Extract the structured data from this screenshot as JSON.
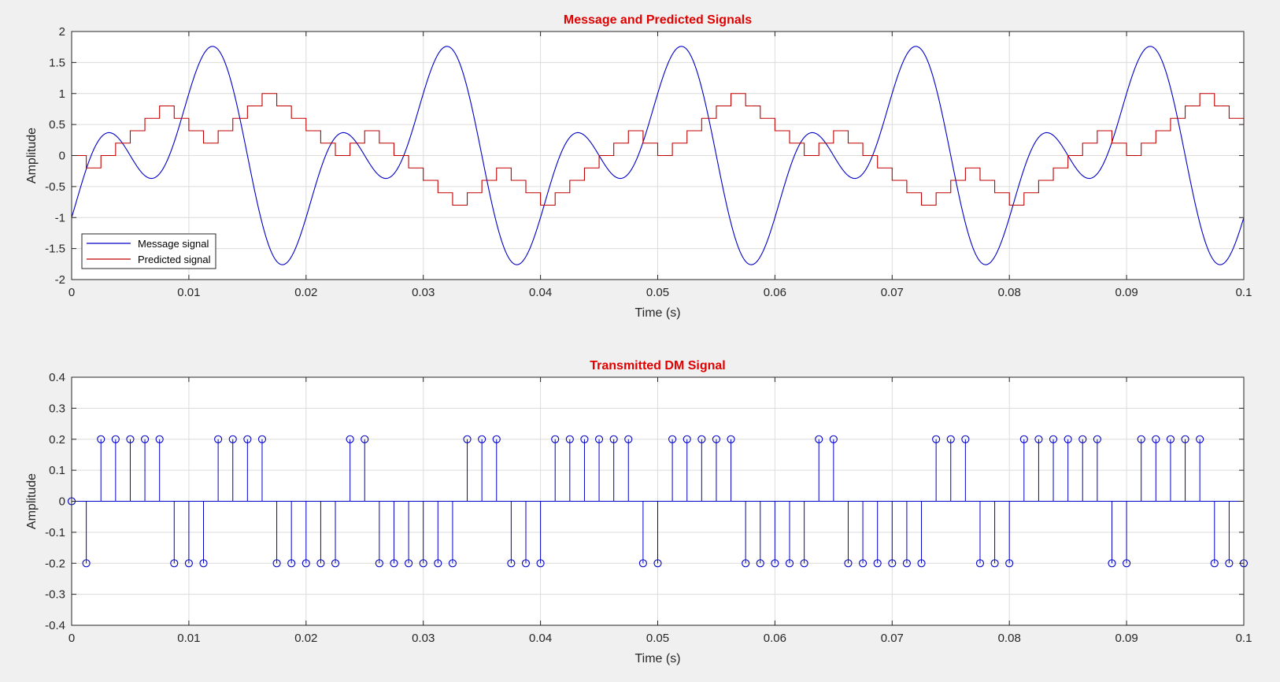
{
  "colors": {
    "message": "#0000c8",
    "predicted": "#c00000",
    "stem": "#0000c8",
    "title": "#e00000",
    "grid": "#dcdcdc",
    "axes": "#262626"
  },
  "chart_data": [
    {
      "type": "line",
      "title": "Message and Predicted Signals",
      "xlabel": "Time (s)",
      "ylabel": "Amplitude",
      "xlim": [
        0,
        0.1
      ],
      "ylim": [
        -2,
        2
      ],
      "xticks": [
        0,
        0.01,
        0.02,
        0.03,
        0.04,
        0.05,
        0.06,
        0.07,
        0.08,
        0.09,
        0.1
      ],
      "xtick_labels": [
        "0",
        "0.01",
        "0.02",
        "0.03",
        "0.04",
        "0.05",
        "0.06",
        "0.07",
        "0.08",
        "0.09",
        "0.1"
      ],
      "yticks": [
        -2,
        -1.5,
        -1,
        -0.5,
        0,
        0.5,
        1,
        1.5,
        2
      ],
      "ytick_labels": [
        "-2",
        "-1.5",
        "-1",
        "-0.5",
        "0",
        "0.5",
        "1",
        "1.5",
        "2"
      ],
      "grid": true,
      "legend": {
        "position": "bottom-left",
        "entries": [
          "Message signal",
          "Predicted signal"
        ]
      },
      "sample_period": 0.00125,
      "series": [
        {
          "name": "Message signal",
          "kind": "sine-sum",
          "components": [
            {
              "amplitude": 1,
              "frequency_hz": 100,
              "phase": "sin"
            },
            {
              "amplitude": -1,
              "frequency_hz": 50,
              "phase": "cos"
            }
          ]
        },
        {
          "name": "Predicted signal",
          "kind": "staircase",
          "x": [
            0,
            0.00125,
            0.0025,
            0.00375,
            0.005,
            0.00625,
            0.0075,
            0.00875,
            0.01,
            0.01125,
            0.0125,
            0.01375,
            0.015,
            0.01625,
            0.0175,
            0.01875,
            0.02,
            0.02125,
            0.0225,
            0.02375,
            0.025,
            0.02625,
            0.0275,
            0.02875,
            0.03,
            0.03125,
            0.0325,
            0.03375,
            0.035,
            0.03625,
            0.0375,
            0.03875,
            0.04,
            0.04125,
            0.0425,
            0.04375,
            0.045,
            0.04625,
            0.0475,
            0.04875,
            0.05,
            0.05125,
            0.0525,
            0.05375,
            0.055,
            0.05625,
            0.0575,
            0.05875,
            0.06,
            0.06125,
            0.0625,
            0.06375,
            0.065,
            0.06625,
            0.0675,
            0.06875,
            0.07,
            0.07125,
            0.0725,
            0.07375,
            0.075,
            0.07625,
            0.0775,
            0.07875,
            0.08,
            0.08125,
            0.0825,
            0.08375,
            0.085,
            0.08625,
            0.0875,
            0.08875,
            0.09,
            0.09125,
            0.0925,
            0.09375,
            0.095,
            0.09625,
            0.0975,
            0.09875,
            0.1
          ],
          "values": [
            0,
            -0.2,
            0,
            0.2,
            0.4,
            0.6,
            0.8,
            0.6,
            0.4,
            0.2,
            0.4,
            0.6,
            0.8,
            1,
            0.8,
            0.6,
            0.4,
            0.2,
            0,
            0.2,
            0.4,
            0.2,
            0,
            -0.2,
            -0.4,
            -0.6,
            -0.8,
            -0.6,
            -0.4,
            -0.2,
            -0.4,
            -0.6,
            -0.8,
            -0.6,
            -0.4,
            -0.2,
            0,
            0.2,
            0.4,
            0.2,
            0,
            0.2,
            0.4,
            0.6,
            0.8,
            1,
            0.8,
            0.6,
            0.4,
            0.2,
            0,
            0.2,
            0.4,
            0.2,
            0,
            -0.2,
            -0.4,
            -0.6,
            -0.8,
            -0.6,
            -0.4,
            -0.2,
            -0.4,
            -0.6,
            -0.8,
            -0.6,
            -0.4,
            -0.2,
            0,
            0.2,
            0.4,
            0.2,
            0,
            0.2,
            0.4,
            0.6,
            0.8,
            1,
            0.8,
            0.6,
            0.5
          ]
        }
      ]
    },
    {
      "type": "stem",
      "title": "Transmitted DM Signal",
      "xlabel": "Time (s)",
      "ylabel": "Amplitude",
      "xlim": [
        0,
        0.1
      ],
      "ylim": [
        -0.4,
        0.4
      ],
      "xticks": [
        0,
        0.01,
        0.02,
        0.03,
        0.04,
        0.05,
        0.06,
        0.07,
        0.08,
        0.09,
        0.1
      ],
      "xtick_labels": [
        "0",
        "0.01",
        "0.02",
        "0.03",
        "0.04",
        "0.05",
        "0.06",
        "0.07",
        "0.08",
        "0.09",
        "0.1"
      ],
      "yticks": [
        -0.4,
        -0.3,
        -0.2,
        -0.1,
        0,
        0.1,
        0.2,
        0.3,
        0.4
      ],
      "ytick_labels": [
        "-0.4",
        "-0.3",
        "-0.2",
        "-0.1",
        "0",
        "0.1",
        "0.2",
        "0.3",
        "0.4"
      ],
      "grid": true,
      "series": [
        {
          "name": "",
          "x": [
            0,
            0.00125,
            0.0025,
            0.00375,
            0.005,
            0.00625,
            0.0075,
            0.00875,
            0.01,
            0.01125,
            0.0125,
            0.01375,
            0.015,
            0.01625,
            0.0175,
            0.01875,
            0.02,
            0.02125,
            0.0225,
            0.02375,
            0.025,
            0.02625,
            0.0275,
            0.02875,
            0.03,
            0.03125,
            0.0325,
            0.03375,
            0.035,
            0.03625,
            0.0375,
            0.03875,
            0.04,
            0.04125,
            0.0425,
            0.04375,
            0.045,
            0.04625,
            0.0475,
            0.04875,
            0.05,
            0.05125,
            0.0525,
            0.05375,
            0.055,
            0.05625,
            0.0575,
            0.05875,
            0.06,
            0.06125,
            0.0625,
            0.06375,
            0.065,
            0.06625,
            0.0675,
            0.06875,
            0.07,
            0.07125,
            0.0725,
            0.07375,
            0.075,
            0.07625,
            0.0775,
            0.07875,
            0.08,
            0.08125,
            0.0825,
            0.08375,
            0.085,
            0.08625,
            0.0875,
            0.08875,
            0.09,
            0.09125,
            0.0925,
            0.09375,
            0.095,
            0.09625,
            0.0975,
            0.09875,
            0.1
          ],
          "values": [
            0,
            -0.2,
            0.2,
            0.2,
            0.2,
            0.2,
            0.2,
            -0.2,
            -0.2,
            -0.2,
            0.2,
            0.2,
            0.2,
            0.2,
            -0.2,
            -0.2,
            -0.2,
            -0.2,
            -0.2,
            0.2,
            0.2,
            -0.2,
            -0.2,
            -0.2,
            -0.2,
            -0.2,
            -0.2,
            0.2,
            0.2,
            0.2,
            -0.2,
            -0.2,
            -0.2,
            0.2,
            0.2,
            0.2,
            0.2,
            0.2,
            0.2,
            -0.2,
            -0.2,
            0.2,
            0.2,
            0.2,
            0.2,
            0.2,
            -0.2,
            -0.2,
            -0.2,
            -0.2,
            -0.2,
            0.2,
            0.2,
            -0.2,
            -0.2,
            -0.2,
            -0.2,
            -0.2,
            -0.2,
            0.2,
            0.2,
            0.2,
            -0.2,
            -0.2,
            -0.2,
            0.2,
            0.2,
            0.2,
            0.2,
            0.2,
            0.2,
            -0.2,
            -0.2,
            0.2,
            0.2,
            0.2,
            0.2,
            0.2,
            -0.2,
            -0.2,
            -0.2
          ]
        }
      ]
    }
  ]
}
